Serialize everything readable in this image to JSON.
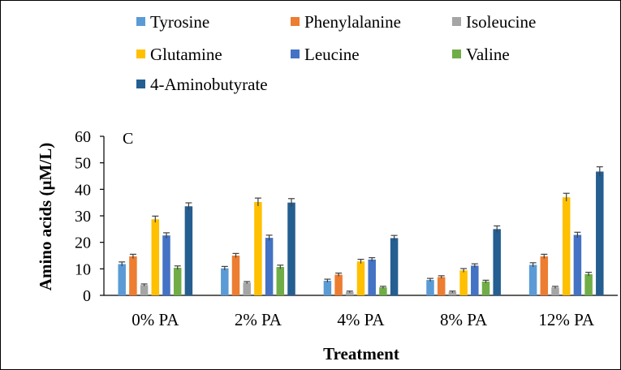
{
  "chart_data": {
    "type": "bar",
    "title": "",
    "panel_label": "C",
    "xlabel": "Treatment",
    "ylabel": "Amino acids (µM/L)",
    "ylim": [
      0,
      60
    ],
    "yticks": [
      0,
      10,
      20,
      30,
      40,
      50,
      60
    ],
    "grid": false,
    "legend_position": "top",
    "categories": [
      "0% PA",
      "2% PA",
      "4% PA",
      "8% PA",
      "12% PA"
    ],
    "series": [
      {
        "name": "Tyrosine",
        "color": "#5B9BD5",
        "values": [
          11.8,
          10.2,
          5.5,
          5.8,
          11.5
        ],
        "errors": [
          0.8,
          0.7,
          0.6,
          0.6,
          0.8
        ]
      },
      {
        "name": "Phenylalanine",
        "color": "#ED7D31",
        "values": [
          14.7,
          15.0,
          7.8,
          6.9,
          14.7
        ],
        "errors": [
          0.8,
          0.8,
          0.6,
          0.5,
          0.8
        ]
      },
      {
        "name": "Isoleucine",
        "color": "#A5A5A5",
        "values": [
          3.9,
          4.8,
          1.3,
          1.3,
          3.0
        ],
        "errors": [
          0.4,
          0.4,
          0.3,
          0.3,
          0.4
        ]
      },
      {
        "name": "Glutamine",
        "color": "#FFC000",
        "values": [
          28.7,
          35.2,
          12.8,
          9.4,
          37.0
        ],
        "errors": [
          1.2,
          1.5,
          0.8,
          0.7,
          1.5
        ]
      },
      {
        "name": "Leucine",
        "color": "#4472C4",
        "values": [
          22.6,
          21.7,
          13.5,
          11.2,
          22.8
        ],
        "errors": [
          1.0,
          1.0,
          0.7,
          0.7,
          1.0
        ]
      },
      {
        "name": "Valine",
        "color": "#70AD47",
        "values": [
          10.4,
          10.7,
          3.0,
          5.2,
          8.0
        ],
        "errors": [
          0.7,
          0.7,
          0.4,
          0.5,
          0.7
        ]
      },
      {
        "name": "4-Aminobutyrate",
        "color": "#255E91",
        "values": [
          33.6,
          35.0,
          21.6,
          25.0,
          46.7
        ],
        "errors": [
          1.3,
          1.5,
          1.0,
          1.2,
          1.8
        ]
      }
    ]
  }
}
